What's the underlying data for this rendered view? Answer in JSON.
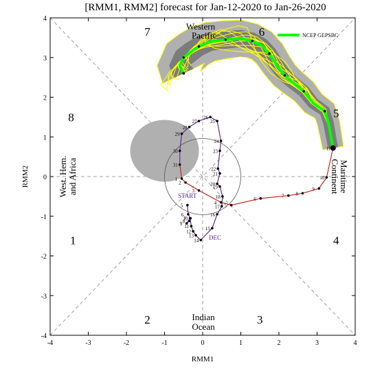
{
  "chart_data": {
    "type": "line",
    "title": "[RMM1, RMM2] forecast for Jan-12-2020 to Jan-26-2020",
    "xlabel": "RMM1",
    "ylabel": "RMM2",
    "xlim": [
      -4,
      4
    ],
    "ylim": [
      -4,
      4
    ],
    "x_ticks": [
      "-4",
      "-3",
      "-2",
      "-1",
      "0",
      "1",
      "2",
      "3",
      "4"
    ],
    "y_ticks": [
      "-4",
      "-3",
      "-2",
      "-1",
      "0",
      "1",
      "2",
      "3",
      "4"
    ],
    "phase_numbers": [
      {
        "label": "1",
        "x": -3.4,
        "y": -1.6
      },
      {
        "label": "2",
        "x": -1.45,
        "y": -3.6
      },
      {
        "label": "3",
        "x": 1.5,
        "y": -3.6
      },
      {
        "label": "4",
        "x": 3.5,
        "y": -1.6
      },
      {
        "label": "5",
        "x": 3.5,
        "y": 1.6
      },
      {
        "label": "6",
        "x": 1.55,
        "y": 3.65
      },
      {
        "label": "7",
        "x": -1.45,
        "y": 3.65
      },
      {
        "label": "8",
        "x": -3.45,
        "y": 1.5
      }
    ],
    "region_labels": {
      "top_line1": "Western",
      "top_line2": "Pacific",
      "bottom_line1": "Indian",
      "bottom_line2": "Ocean",
      "left_line1": "West. Hem.",
      "left_line2": "and Africa",
      "right_line1": "Maritime",
      "right_line2": "Continent"
    },
    "legend": {
      "label": "NCEP GEPSBC",
      "color": "#00ff00",
      "position": "top-right"
    },
    "annotations": {
      "start": "START",
      "dec": "DEC"
    },
    "colors": {
      "december": "#5b2c8f",
      "january": "#cc2222",
      "ensemble_members": "#ffff00",
      "ensemble_mean": "#00ff00",
      "spread_outer": "#b0b0b0",
      "spread_inner": "#7c7c7c"
    },
    "series": [
      {
        "name": "December observed",
        "labels": [
          "5",
          "6",
          "7",
          "8",
          "9",
          "10",
          "11",
          "12",
          "13",
          "14",
          "15",
          "16",
          "17",
          "18",
          "19",
          "20",
          "21",
          "22",
          "23",
          "24",
          "25",
          "26",
          "27",
          "28",
          "29",
          "30",
          "31"
        ],
        "x": [
          -0.4,
          -0.38,
          -0.32,
          -0.35,
          -0.42,
          -0.33,
          -0.3,
          -0.25,
          -0.18,
          -0.05,
          0.25,
          0.38,
          0.5,
          0.52,
          0.45,
          0.38,
          0.45,
          0.4,
          0.45,
          0.48,
          0.38,
          0.2,
          -0.1,
          -0.35,
          -0.55,
          -0.6,
          -0.6
        ],
        "y": [
          -0.72,
          -0.95,
          -1.05,
          -1.12,
          -1.18,
          -1.05,
          -1.25,
          -1.38,
          -1.48,
          -1.6,
          -1.3,
          -0.95,
          -0.75,
          -0.5,
          -0.25,
          -0.18,
          0.08,
          0.2,
          0.65,
          0.9,
          1.4,
          1.5,
          1.4,
          1.25,
          1.08,
          0.65,
          0.3
        ]
      },
      {
        "name": "January observed",
        "labels": [
          "1",
          "2",
          "3",
          "4",
          "5",
          "6",
          "7",
          "8",
          "9",
          "10",
          "11"
        ],
        "x": [
          -0.55,
          -0.45,
          -0.1,
          0.48,
          0.75,
          1.52,
          2.25,
          2.62,
          3.05,
          3.25,
          3.42
        ],
        "y": [
          -0.05,
          -0.15,
          -0.35,
          -0.65,
          -0.72,
          -0.55,
          -0.48,
          -0.42,
          -0.3,
          -0.02,
          0.72
        ]
      },
      {
        "name": "NCEP GEPSBC",
        "x": [
          3.42,
          3.3,
          3.2,
          2.9,
          2.65,
          2.35,
          2.15,
          1.95,
          1.75,
          1.55,
          1.3,
          1.0,
          0.6,
          0.2,
          -0.1,
          -0.3,
          -0.5,
          -0.6,
          -0.5
        ],
        "y": [
          0.72,
          1.35,
          1.65,
          1.85,
          2.15,
          2.38,
          2.55,
          2.8,
          3.1,
          3.3,
          3.42,
          3.48,
          3.45,
          3.4,
          3.28,
          3.15,
          3.0,
          2.8,
          2.6
        ]
      }
    ]
  }
}
